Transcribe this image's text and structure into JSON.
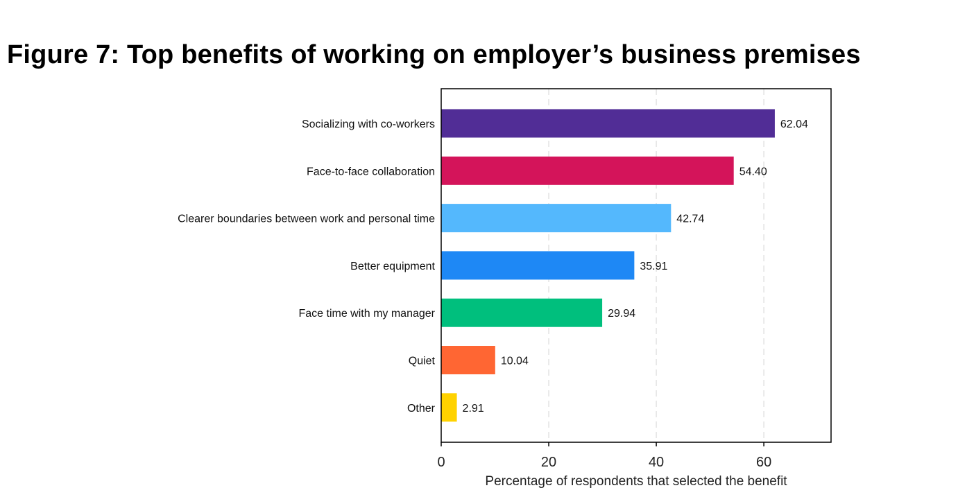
{
  "figure_title": "Figure 7: Top benefits of working on employer’s business premises",
  "chart_data": {
    "type": "bar",
    "orientation": "horizontal",
    "categories": [
      "Socializing with co-workers",
      "Face-to-face collaboration",
      "Clearer boundaries between work and personal time",
      "Better equipment",
      "Face time with my manager",
      "Quiet",
      "Other"
    ],
    "values": [
      62.04,
      54.4,
      42.74,
      35.91,
      29.94,
      10.04,
      2.91
    ],
    "value_labels": [
      "62.04",
      "54.40",
      "42.74",
      "35.91",
      "29.94",
      "10.04",
      "2.91"
    ],
    "colors": [
      "#512d96",
      "#d4145a",
      "#54b8fd",
      "#1e88f5",
      "#00bf7d",
      "#ff6633",
      "#ffd200"
    ],
    "title": "Figure 7: Top benefits of working on employer’s business premises",
    "xlabel": "Percentage of respondents that selected the benefit",
    "ylabel": "",
    "xlim": [
      0,
      72.5
    ],
    "x_ticks": [
      0,
      20,
      40,
      60
    ],
    "x_tick_labels": [
      "0",
      "20",
      "40",
      "60"
    ],
    "grid": "vertical dashed",
    "legend": "none"
  }
}
